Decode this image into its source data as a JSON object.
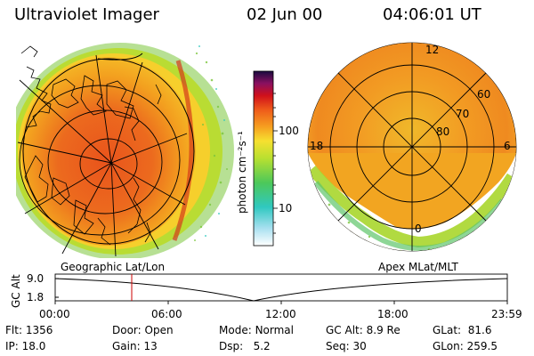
{
  "header": {
    "title": "Ultraviolet Imager",
    "date": "02 Jun 00",
    "time": "04:06:01 UT"
  },
  "colorbar": {
    "unit_label": "photon cm⁻²s⁻¹",
    "ticks": [
      {
        "value": 100,
        "label": "100"
      },
      {
        "value": 10,
        "label": "10"
      }
    ],
    "range": [
      3,
      300
    ],
    "scale": "log"
  },
  "left_panel": {
    "label": "Geographic Lat/Lon"
  },
  "right_panel": {
    "label": "Apex MLat/MLT",
    "lat_labels": [
      "60",
      "70",
      "80"
    ],
    "mlt_labels": {
      "top": "12",
      "left": "18",
      "right": "6",
      "bottom": "0"
    }
  },
  "altitude_plot": {
    "ylabel": "GC Alt",
    "y_ticks": [
      "9.0",
      "1.8"
    ],
    "x_ticks": [
      "00:00",
      "06:00",
      "12:00",
      "18:00",
      "23:59"
    ],
    "marker_time": "04:06"
  },
  "info": {
    "flt": {
      "label": "Flt:",
      "value": "1356"
    },
    "ip": {
      "label": "IP:",
      "value": "18.0"
    },
    "door": {
      "label": "Door:",
      "value": "Open"
    },
    "gain": {
      "label": "Gain:",
      "value": "13"
    },
    "mode": {
      "label": "Mode:",
      "value": "Normal"
    },
    "dsp": {
      "label": "Dsp:",
      "value": "5.2"
    },
    "gcalt": {
      "label": "GC Alt:",
      "value": "8.9 Re"
    },
    "seq": {
      "label": "Seq:",
      "value": "30"
    },
    "glat": {
      "label": "GLat:",
      "value": "81.6"
    },
    "glon": {
      "label": "GLon:",
      "value": "259.5"
    }
  },
  "colors": {
    "marker": "#cc0000",
    "bright": "#e8541a",
    "mid": "#f39a1c",
    "low": "#a8d62a"
  }
}
